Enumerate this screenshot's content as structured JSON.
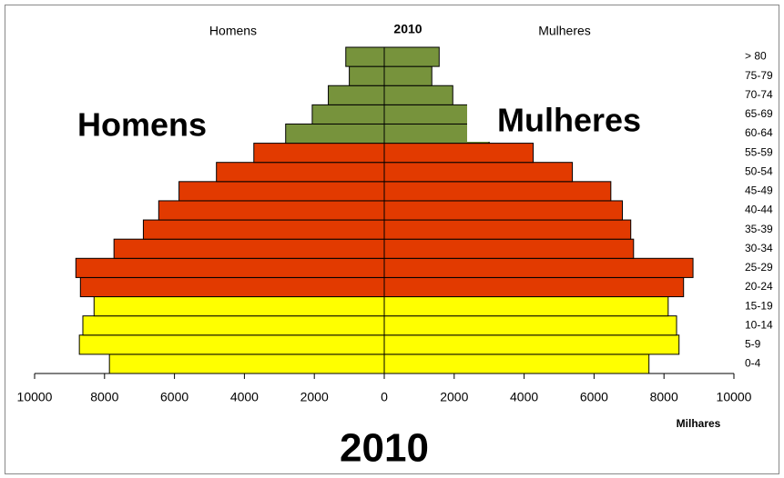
{
  "chart_data": {
    "type": "pyramid",
    "title": "2010",
    "x_label": "Milhares",
    "categories": [
      "0-4",
      "5-9",
      "10-14",
      "15-19",
      "20-24",
      "25-29",
      "30-34",
      "35-39",
      "40-44",
      "45-49",
      "50-54",
      "55-59",
      "60-64",
      "65-69",
      "70-74",
      "75-79",
      "> 80"
    ],
    "colors": [
      "#ffff00",
      "#ffff00",
      "#ffff00",
      "#ffff00",
      "#e23a00",
      "#e23a00",
      "#e23a00",
      "#e23a00",
      "#e23a00",
      "#e23a00",
      "#e23a00",
      "#e23a00",
      "#77933c",
      "#77933c",
      "#77933c",
      "#77933c",
      "#77933c"
    ],
    "series": [
      {
        "name": "Homens",
        "values": [
          -7860,
          -8720,
          -8620,
          -8300,
          -8690,
          -8820,
          -7730,
          -6890,
          -6450,
          -5870,
          -4800,
          -3730,
          -2820,
          -2060,
          -1600,
          -1000,
          -1100
        ]
      },
      {
        "name": "Mulheres",
        "values": [
          7570,
          8430,
          8360,
          8120,
          8560,
          8830,
          7130,
          7050,
          6810,
          6480,
          5380,
          4260,
          3000,
          2400,
          1960,
          1360,
          1570
        ]
      }
    ],
    "xlim": [
      -10000,
      10000
    ],
    "xticks": [
      {
        "value": -10000,
        "label": "10000"
      },
      {
        "value": -8000,
        "label": "8000"
      },
      {
        "value": -6000,
        "label": "6000"
      },
      {
        "value": -4000,
        "label": "4000"
      },
      {
        "value": -2000,
        "label": "2000"
      },
      0,
      2000,
      4000,
      6000,
      8000,
      10000
    ]
  }
}
